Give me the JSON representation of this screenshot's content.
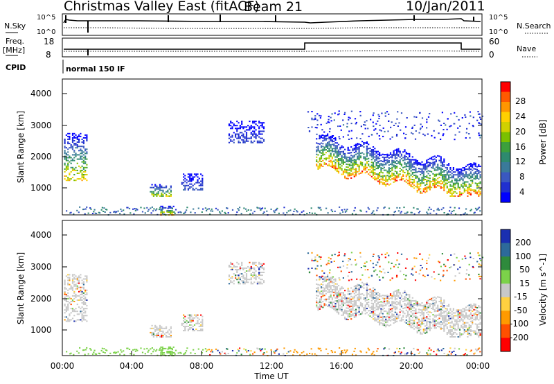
{
  "header": {
    "station": "Christmas Valley East (fitACF)",
    "beam": "Beam 21",
    "date": "10/Jan/2011"
  },
  "strips": {
    "nsky_label": "N.Sky",
    "nsky_ticks": [
      "10^5",
      "10^0"
    ],
    "nsearch_label": "N.Search",
    "nsearch_ticks": [
      "10^5",
      "10^0"
    ],
    "freq_label_1": "Freq.",
    "freq_label_2": "[MHz]",
    "freq_ticks": [
      "18",
      "8"
    ],
    "nave_label": "Nave",
    "nave_ticks": [
      "60",
      "0"
    ],
    "cpid_label": "CPID",
    "cpid_value": "normal 150 IF"
  },
  "chart_data": [
    {
      "type": "heatmap",
      "name": "power",
      "ylabel": "Slant Range [km]",
      "yticks": [
        "4000",
        "3000",
        "2000",
        "1000"
      ],
      "ylim": [
        180,
        4500
      ],
      "colorbar_label": "Power [dB]",
      "colorbar_ticks": [
        "28",
        "24",
        "20",
        "16",
        "12",
        "8",
        "4"
      ],
      "colorbar_colors": [
        "#ff0000",
        "#ff5a00",
        "#ff9600",
        "#ffd000",
        "#d0d000",
        "#7ac000",
        "#3ca03c",
        "#2e8a6e",
        "#3a7a9a",
        "#3a58c0",
        "#2030d0",
        "#0000ff"
      ],
      "echo_regions": [
        {
          "x": [
            0.1,
            1.4
          ],
          "y": [
            1300,
            2800
          ],
          "peak": 26
        },
        {
          "x": [
            5.0,
            6.2
          ],
          "y": [
            800,
            1200
          ],
          "peak": 22
        },
        {
          "x": [
            5.6,
            6.4
          ],
          "y": [
            200,
            500
          ],
          "peak": 28
        },
        {
          "x": [
            6.8,
            8.0
          ],
          "y": [
            1000,
            1500
          ],
          "peak": 8
        },
        {
          "x": [
            9.5,
            11.5
          ],
          "y": [
            2500,
            3200
          ],
          "peak": 6
        },
        {
          "x": [
            14.5,
            23.9
          ],
          "y": [
            900,
            3500
          ],
          "peak": 30
        }
      ]
    },
    {
      "type": "heatmap",
      "name": "velocity",
      "ylabel": "Slant Range [km]",
      "yticks": [
        "4000",
        "3000",
        "2000",
        "1000"
      ],
      "ylim": [
        180,
        4500
      ],
      "colorbar_label": "Velocity [m s^-1]",
      "colorbar_ticks": [
        "200",
        "100",
        "50",
        "15",
        "-15",
        "-50",
        "-100",
        "-200"
      ],
      "colorbar_colors": [
        "#1a2fb0",
        "#2d6a9a",
        "#2e8a3c",
        "#7cd24a",
        "#c8c8c8",
        "#ffd040",
        "#ff9a00",
        "#ff5000",
        "#ff0000"
      ],
      "xlabel": "Time UT",
      "xticks": [
        "00:00",
        "04:00",
        "08:00",
        "12:00",
        "16:00",
        "20:00",
        "00:00"
      ],
      "xlim": [
        0,
        24
      ]
    }
  ]
}
